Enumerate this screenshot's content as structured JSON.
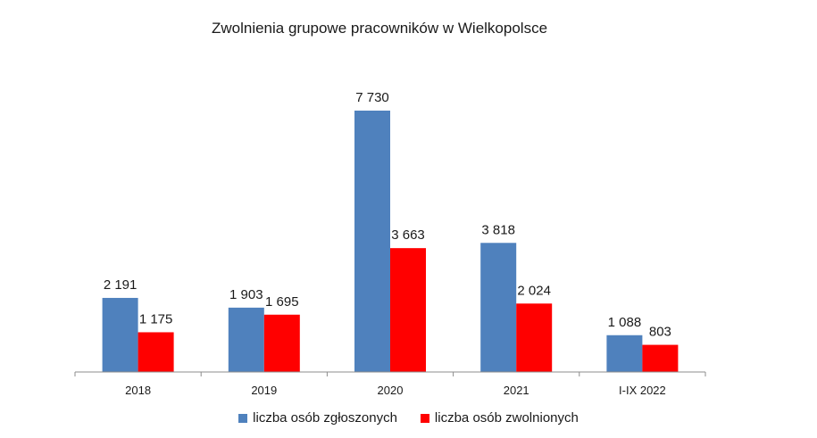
{
  "chart_data": {
    "type": "bar",
    "title": "Zwolnienia grupowe pracowników w Wielkopolsce",
    "categories": [
      "2018",
      "2019",
      "2020",
      "2021",
      "I-IX 2022"
    ],
    "series": [
      {
        "name": "liczba osób zgłoszonych",
        "color": "#4f81bd",
        "values": [
          2191,
          1903,
          7730,
          3818,
          1088
        ],
        "labels": [
          "2 191",
          "1 903",
          "7 730",
          "3 818",
          "1 088"
        ]
      },
      {
        "name": "liczba osób zwolnionych",
        "color": "#ff0000",
        "values": [
          1175,
          1695,
          3663,
          2024,
          803
        ],
        "labels": [
          "1 175",
          "1 695",
          "3 663",
          "2 024",
          "803"
        ]
      }
    ],
    "ylim": [
      0,
      7730
    ],
    "grid": false,
    "legend": "bottom"
  }
}
